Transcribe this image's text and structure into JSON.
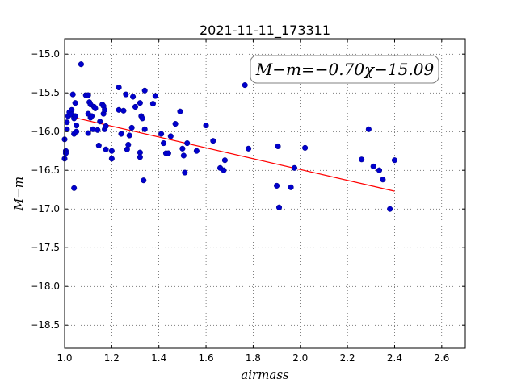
{
  "chart_data": {
    "type": "scatter",
    "title": "2021-11-11_173311",
    "xlabel": "airmass",
    "ylabel": "M−m",
    "xlim": [
      1.0,
      2.7
    ],
    "ylim": [
      -18.8,
      -14.8
    ],
    "x_ticks": [
      "1.0",
      "1.2",
      "1.4",
      "1.6",
      "1.8",
      "2.0",
      "2.2",
      "2.4",
      "2.6"
    ],
    "y_ticks": [
      "−15.0",
      "−15.5",
      "−16.0",
      "−16.5",
      "−17.0",
      "−17.5",
      "−18.0",
      "−18.5"
    ],
    "grid": true,
    "annotation": "M−m=−0.70χ−15.09",
    "fit": {
      "slope": -0.7,
      "intercept": -15.09,
      "x_range": [
        1.05,
        2.4
      ],
      "color": "#ff0000"
    },
    "marker_color": "#0000cc",
    "points": [
      [
        1.0,
        -16.1
      ],
      [
        1.0,
        -16.35
      ],
      [
        1.005,
        -16.25
      ],
      [
        1.005,
        -16.28
      ],
      [
        1.01,
        -15.97
      ],
      [
        1.01,
        -15.88
      ],
      [
        1.015,
        -15.8
      ],
      [
        1.02,
        -15.75
      ],
      [
        1.03,
        -15.72
      ],
      [
        1.03,
        -15.78
      ],
      [
        1.035,
        -15.52
      ],
      [
        1.04,
        -15.83
      ],
      [
        1.04,
        -16.03
      ],
      [
        1.045,
        -15.63
      ],
      [
        1.045,
        -15.8
      ],
      [
        1.05,
        -15.92
      ],
      [
        1.05,
        -16.0
      ],
      [
        1.04,
        -16.73
      ],
      [
        1.07,
        -15.13
      ],
      [
        1.09,
        -15.53
      ],
      [
        1.1,
        -15.53
      ],
      [
        1.1,
        -15.77
      ],
      [
        1.1,
        -16.02
      ],
      [
        1.105,
        -15.62
      ],
      [
        1.11,
        -15.65
      ],
      [
        1.11,
        -15.82
      ],
      [
        1.115,
        -15.8
      ],
      [
        1.12,
        -15.97
      ],
      [
        1.125,
        -15.68
      ],
      [
        1.13,
        -15.7
      ],
      [
        1.14,
        -15.98
      ],
      [
        1.145,
        -16.18
      ],
      [
        1.15,
        -15.87
      ],
      [
        1.16,
        -15.65
      ],
      [
        1.165,
        -15.67
      ],
      [
        1.165,
        -15.77
      ],
      [
        1.17,
        -15.72
      ],
      [
        1.17,
        -15.97
      ],
      [
        1.175,
        -15.93
      ],
      [
        1.175,
        -16.23
      ],
      [
        1.2,
        -16.35
      ],
      [
        1.2,
        -16.25
      ],
      [
        1.23,
        -15.43
      ],
      [
        1.23,
        -15.72
      ],
      [
        1.24,
        -16.03
      ],
      [
        1.25,
        -15.73
      ],
      [
        1.26,
        -15.52
      ],
      [
        1.265,
        -16.23
      ],
      [
        1.27,
        -16.17
      ],
      [
        1.275,
        -16.05
      ],
      [
        1.285,
        -15.95
      ],
      [
        1.29,
        -15.55
      ],
      [
        1.3,
        -15.68
      ],
      [
        1.32,
        -15.63
      ],
      [
        1.32,
        -16.27
      ],
      [
        1.32,
        -16.33
      ],
      [
        1.325,
        -15.8
      ],
      [
        1.33,
        -15.83
      ],
      [
        1.335,
        -16.63
      ],
      [
        1.34,
        -15.97
      ],
      [
        1.34,
        -15.47
      ],
      [
        1.375,
        -15.64
      ],
      [
        1.385,
        -15.54
      ],
      [
        1.41,
        -16.03
      ],
      [
        1.42,
        -16.15
      ],
      [
        1.43,
        -16.28
      ],
      [
        1.44,
        -16.28
      ],
      [
        1.45,
        -16.06
      ],
      [
        1.47,
        -15.9
      ],
      [
        1.49,
        -15.74
      ],
      [
        1.5,
        -16.22
      ],
      [
        1.505,
        -16.31
      ],
      [
        1.51,
        -16.53
      ],
      [
        1.52,
        -16.15
      ],
      [
        1.56,
        -16.25
      ],
      [
        1.6,
        -15.92
      ],
      [
        1.63,
        -16.12
      ],
      [
        1.66,
        -16.47
      ],
      [
        1.675,
        -16.5
      ],
      [
        1.68,
        -16.37
      ],
      [
        1.765,
        -15.4
      ],
      [
        1.78,
        -16.22
      ],
      [
        1.9,
        -16.7
      ],
      [
        1.905,
        -16.19
      ],
      [
        1.91,
        -16.98
      ],
      [
        1.96,
        -16.72
      ],
      [
        1.975,
        -16.47
      ],
      [
        2.02,
        -16.21
      ],
      [
        2.26,
        -16.36
      ],
      [
        2.29,
        -15.97
      ],
      [
        2.31,
        -16.45
      ],
      [
        2.335,
        -16.5
      ],
      [
        2.35,
        -16.62
      ],
      [
        2.38,
        -17.0
      ],
      [
        2.4,
        -16.37
      ]
    ]
  }
}
